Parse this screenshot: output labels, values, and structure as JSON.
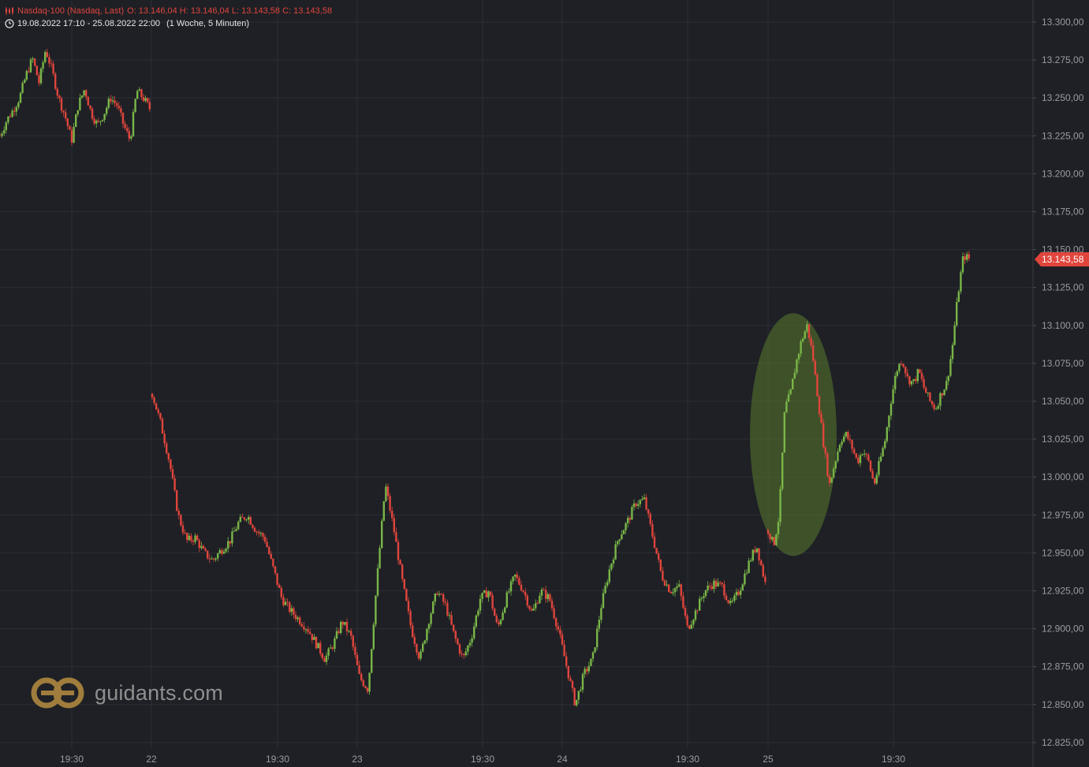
{
  "header": {
    "instrument_line": "Nasdaq-100 (Nasdaq, Last)",
    "ohlc": "O: 13.146,04  H: 13.146,04  L: 13.143,58  C: 13.143,58",
    "range_line": "19.08.2022 17:10 - 25.08.2022 22:00",
    "interval": "(1 Woche, 5 Minuten)"
  },
  "watermark": {
    "text": "guidants.com"
  },
  "colors": {
    "background": "#1e2025",
    "grid": "#2b2e35",
    "axis_text": "#9a9ca3",
    "up": "#7ab648",
    "down": "#e0453c",
    "highlight": "#5a7a2e",
    "watermark_logo": "#a07d3c"
  },
  "chart_data": {
    "type": "candlestick",
    "title": "Nasdaq-100 (Nasdaq, Last)",
    "y_axis": {
      "ticks": [
        "13.300,00",
        "13.275,00",
        "13.250,00",
        "13.225,00",
        "13.200,00",
        "13.175,00",
        "13.150,00",
        "13.125,00",
        "13.100,00",
        "13.075,00",
        "13.050,00",
        "13.025,00",
        "13.000,00",
        "12.975,00",
        "12.950,00",
        "12.925,00",
        "12.900,00",
        "12.875,00",
        "12.850,00",
        "12.825,00"
      ],
      "tick_values": [
        13300,
        13275,
        13250,
        13225,
        13200,
        13175,
        13150,
        13125,
        13100,
        13075,
        13050,
        13025,
        13000,
        12975,
        12950,
        12925,
        12900,
        12875,
        12850,
        12825
      ],
      "range": [
        12810,
        13320
      ]
    },
    "x_axis": {
      "range": [
        0,
        1310
      ],
      "labels": [
        {
          "text": "19:30",
          "pos": 91
        },
        {
          "text": "22",
          "pos": 192
        },
        {
          "text": "19:30",
          "pos": 352
        },
        {
          "text": "23",
          "pos": 453
        },
        {
          "text": "19:30",
          "pos": 612
        },
        {
          "text": "24",
          "pos": 713
        },
        {
          "text": "19:30",
          "pos": 872
        },
        {
          "text": "25",
          "pos": 974
        },
        {
          "text": "19:30",
          "pos": 1133
        }
      ]
    },
    "last_price": {
      "value": 13143.58,
      "label": "13.143,58"
    },
    "highlight_ellipse": {
      "x_center": 1006,
      "y_center": 13028,
      "x_radius": 55,
      "y_radius": 80
    },
    "segments": [
      {
        "x_start": 0,
        "x_end": 190,
        "path": [
          13225,
          13235,
          13242,
          13250,
          13265,
          13276,
          13260,
          13282,
          13268,
          13250,
          13238,
          13222,
          13245,
          13256,
          13240,
          13232,
          13240,
          13250,
          13245,
          13232,
          13222,
          13255,
          13250,
          13243
        ]
      },
      {
        "x_start": 193,
        "x_end": 972,
        "path": [
          13055,
          13035,
          13010,
          12975,
          12958,
          12960,
          12950,
          12945,
          12952,
          12958,
          12970,
          12975,
          12965,
          12960,
          12940,
          12920,
          12912,
          12906,
          12900,
          12890,
          12880,
          12890,
          12905,
          12895,
          12868,
          12860,
          12930,
          12995,
          12965,
          12930,
          12900,
          12880,
          12905,
          12925,
          12915,
          12895,
          12880,
          12895,
          12920,
          12925,
          12900,
          12920,
          12935,
          12925,
          12910,
          12925,
          12920,
          12900,
          12875,
          12850,
          12870,
          12880,
          12915,
          12940,
          12960,
          12970,
          12983,
          12985,
          12960,
          12935,
          12925,
          12928,
          12900,
          12912,
          12925,
          12930,
          12928,
          12915,
          12925,
          12942,
          12955,
          12930
        ]
      },
      {
        "x_start": 974,
        "x_end": 1231,
        "path": [
          12965,
          12955,
          12975,
          13045,
          13055,
          13075,
          13090,
          13100,
          13080,
          13050,
          13020,
          12995,
          13010,
          13025,
          13028,
          13020,
          13010,
          13018,
          13010,
          12995,
          13010,
          13025,
          13050,
          13070,
          13078,
          13065,
          13062,
          13070,
          13058,
          13050,
          13045,
          13055,
          13062,
          13085,
          13120,
          13146,
          13144
        ]
      }
    ]
  }
}
